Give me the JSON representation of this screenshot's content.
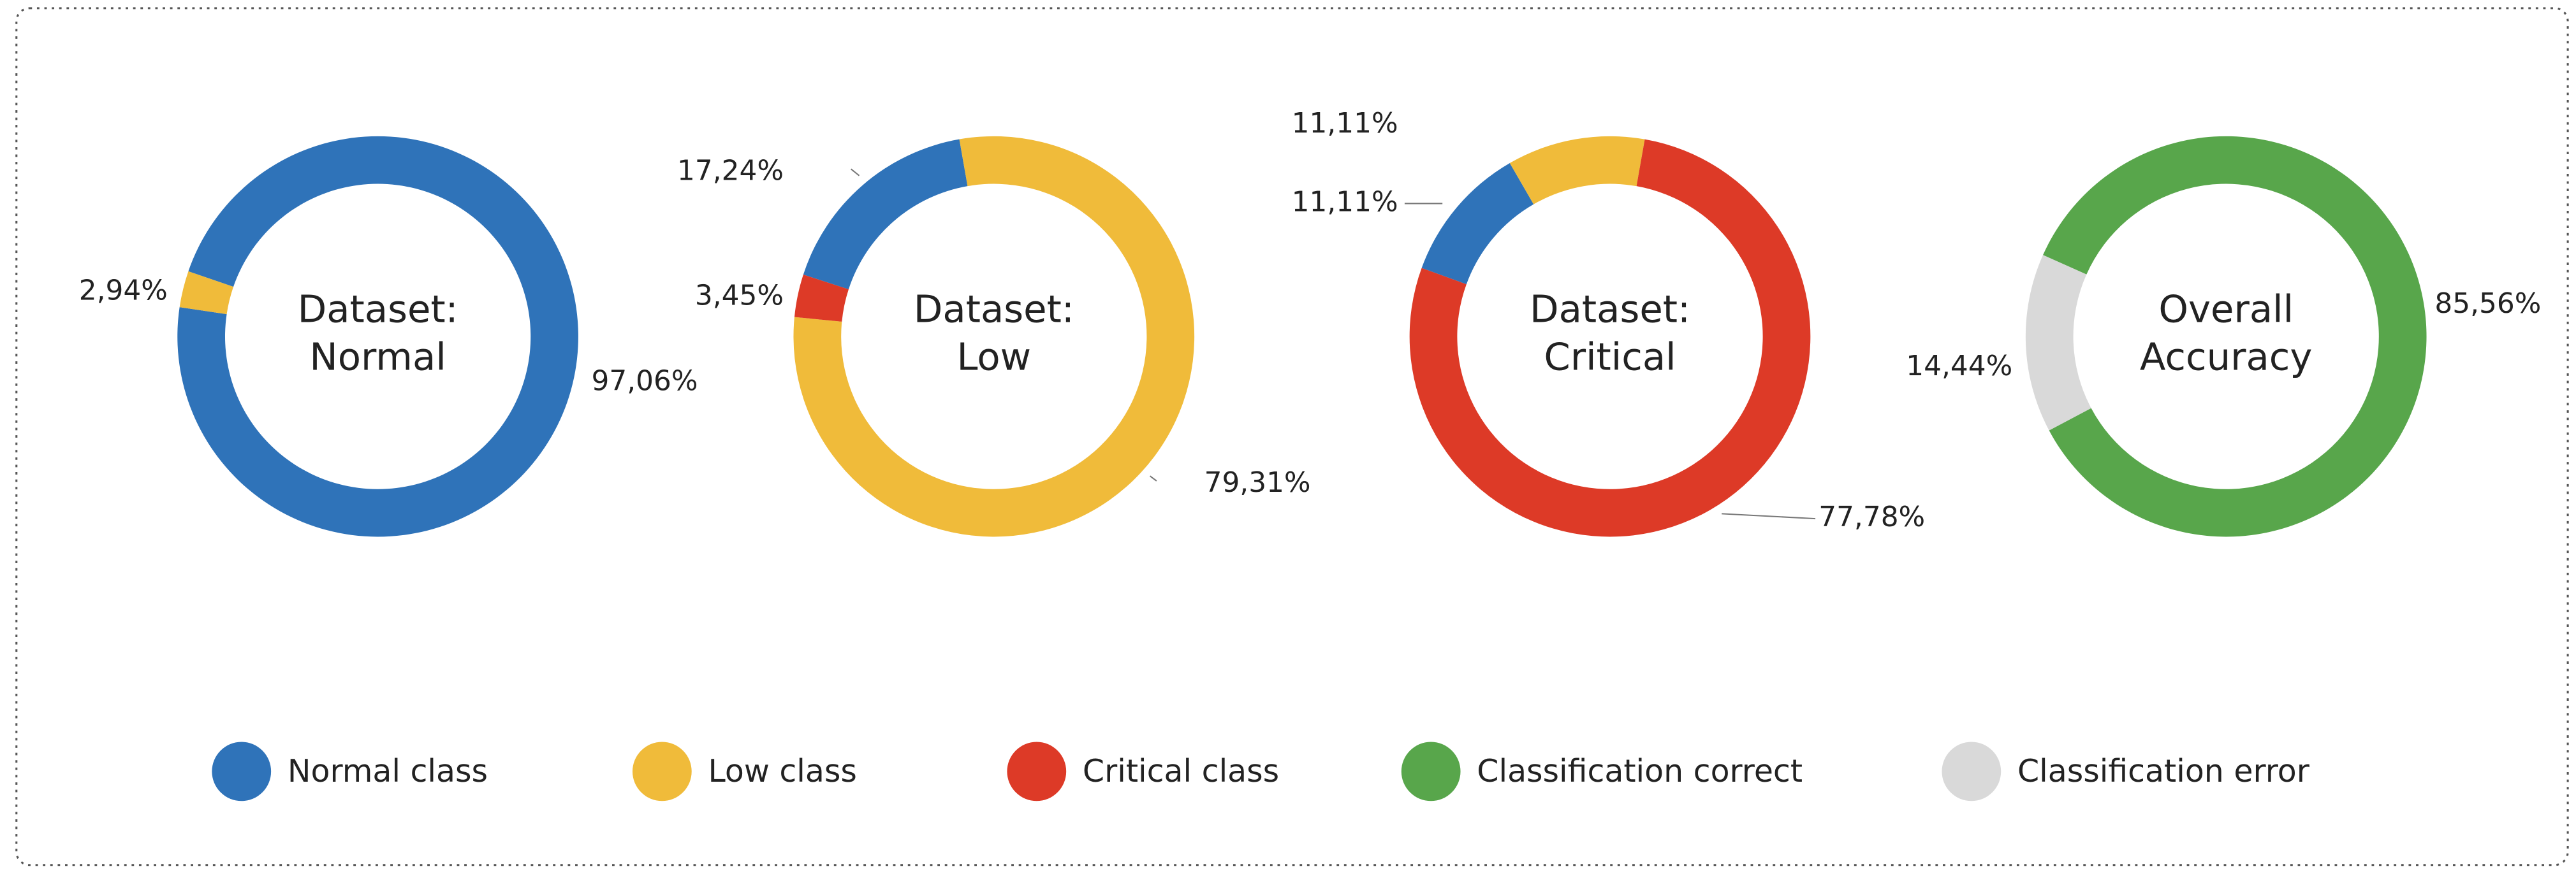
{
  "chart_data": [
    {
      "type": "pie",
      "title": [
        "Dataset:",
        "Normal"
      ],
      "values": [
        97.06,
        2.94
      ],
      "value_labels": [
        "97,06%",
        "2,94%"
      ],
      "colors": [
        "#2f73b9",
        "#f0bb3a"
      ]
    },
    {
      "type": "pie",
      "title": [
        "Dataset:",
        "Low"
      ],
      "values": [
        17.24,
        79.31,
        3.45
      ],
      "value_labels": [
        "17,24%",
        "79,31%",
        "3,45%"
      ],
      "colors": [
        "#2f73b9",
        "#f0bb3a",
        "#dd3a27"
      ]
    },
    {
      "type": "pie",
      "title": [
        "Dataset:",
        "Critical"
      ],
      "values": [
        11.11,
        11.11,
        77.78
      ],
      "value_labels": [
        "11,11%",
        "11,11%",
        "77,78%"
      ],
      "colors": [
        "#2f73b9",
        "#f0bb3a",
        "#dd3a27"
      ]
    },
    {
      "type": "pie",
      "title": [
        "Overall",
        "Accuracy"
      ],
      "values": [
        85.56,
        14.44
      ],
      "value_labels": [
        "85,56%",
        "14,44%"
      ],
      "colors": [
        "#58a64b",
        "#d9d9d9"
      ]
    }
  ],
  "legend": [
    {
      "name": "Normal class",
      "color": "#2f73b9"
    },
    {
      "name": "Low class",
      "color": "#f0bb3a"
    },
    {
      "name": "Critical class",
      "color": "#dd3a27"
    },
    {
      "name": "Classification correct",
      "color": "#58a64b"
    },
    {
      "name": "Classification error",
      "color": "#d9d9d9"
    }
  ]
}
